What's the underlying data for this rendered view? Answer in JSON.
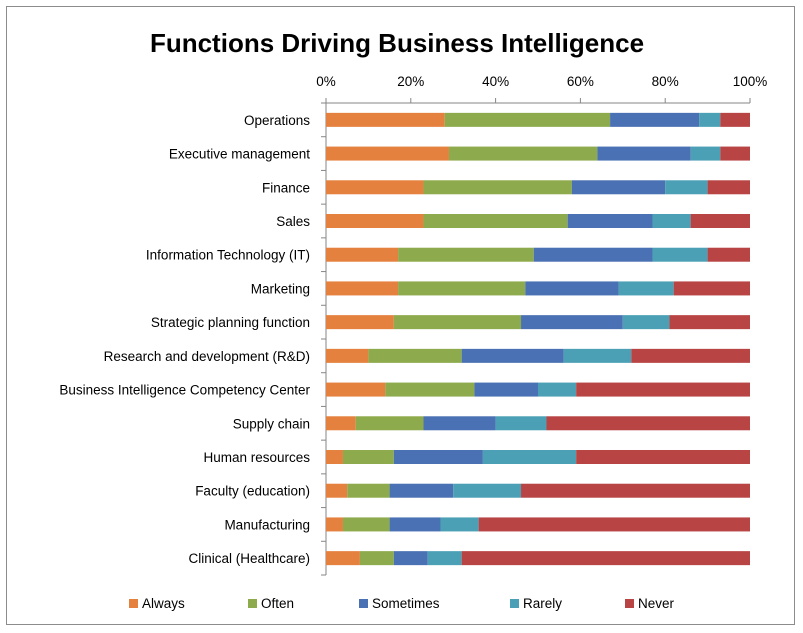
{
  "chart_data": {
    "type": "bar",
    "orientation": "horizontal",
    "stacked": "100%",
    "title": "Functions Driving Business Intelligence",
    "xlabel": "",
    "ylabel": "",
    "xlim": [
      0,
      100
    ],
    "x_ticks": [
      "0%",
      "20%",
      "40%",
      "60%",
      "80%",
      "100%"
    ],
    "x_axis_position": "top",
    "grid": false,
    "legend_position": "bottom",
    "categories": [
      "Operations",
      "Executive management",
      "Finance",
      "Sales",
      "Information Technology (IT)",
      "Marketing",
      "Strategic planning function",
      "Research and development (R&D)",
      "Business Intelligence Competency Center",
      "Supply chain",
      "Human resources",
      "Faculty (education)",
      "Manufacturing",
      "Clinical (Healthcare)"
    ],
    "series": [
      {
        "name": "Always",
        "color": "#E5813E",
        "values": [
          28,
          29,
          23,
          23,
          17,
          17,
          16,
          10,
          14,
          7,
          4,
          5,
          4,
          8
        ]
      },
      {
        "name": "Often",
        "color": "#8DAA4C",
        "values": [
          39,
          35,
          35,
          34,
          32,
          30,
          30,
          22,
          21,
          16,
          12,
          10,
          11,
          8
        ]
      },
      {
        "name": "Sometimes",
        "color": "#4A71B3",
        "values": [
          21,
          22,
          22,
          20,
          28,
          22,
          24,
          24,
          15,
          17,
          21,
          15,
          12,
          8
        ]
      },
      {
        "name": "Rarely",
        "color": "#4BA0B5",
        "values": [
          5,
          7,
          10,
          9,
          13,
          13,
          11,
          16,
          9,
          12,
          22,
          16,
          9,
          8
        ]
      },
      {
        "name": "Never",
        "color": "#B84444",
        "values": [
          7,
          7,
          10,
          14,
          10,
          18,
          19,
          28,
          41,
          48,
          41,
          54,
          64,
          68
        ]
      }
    ]
  }
}
